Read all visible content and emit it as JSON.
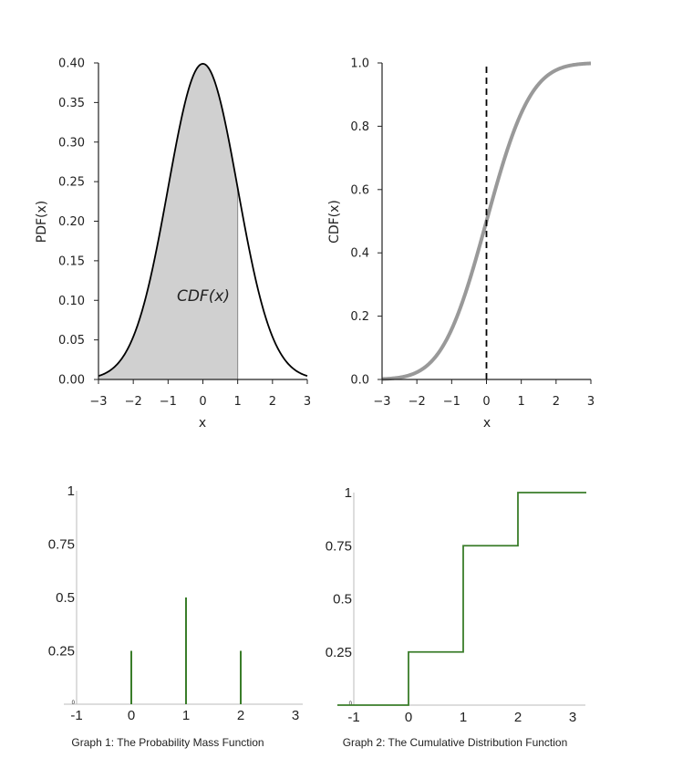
{
  "chart_data": [
    {
      "type": "area",
      "title": "",
      "xlabel": "x",
      "ylabel": "PDF(x)",
      "xlim": [
        -3,
        3
      ],
      "ylim": [
        0,
        0.4
      ],
      "x_ticks": [
        "−3",
        "−2",
        "−1",
        "0",
        "1",
        "2",
        "3"
      ],
      "y_ticks": [
        "0.00",
        "0.05",
        "0.10",
        "0.15",
        "0.20",
        "0.25",
        "0.30",
        "0.35",
        "0.40"
      ],
      "curve": "standard normal density, mean 0, sd 1",
      "shaded_region": {
        "from": -3,
        "to": 1
      },
      "annotation": "CDF(x)",
      "colors": {
        "curve": "#000000",
        "fill": "#d0d0d0"
      }
    },
    {
      "type": "line",
      "title": "",
      "xlabel": "x",
      "ylabel": "CDF(x)",
      "xlim": [
        -3,
        3
      ],
      "ylim": [
        0,
        1
      ],
      "x_ticks": [
        "−3",
        "−2",
        "−1",
        "0",
        "1",
        "2",
        "3"
      ],
      "y_ticks": [
        "0.0",
        "0.2",
        "0.4",
        "0.6",
        "0.8",
        "1.0"
      ],
      "curve": "standard normal cumulative distribution",
      "marker_line": {
        "x": 0,
        "style": "dashed"
      },
      "colors": {
        "curve": "#999999",
        "marker": "#000000"
      }
    },
    {
      "type": "bar",
      "caption": "Graph 1: The Probability Mass Function",
      "xlim": [
        -1,
        3
      ],
      "ylim": [
        0,
        1
      ],
      "x_ticks": [
        "-1",
        "0",
        "1",
        "2",
        "3"
      ],
      "y_ticks": [
        "0.25",
        "0.5",
        "0.75",
        "1"
      ],
      "y_origin_label": "0",
      "points": [
        {
          "x": 0,
          "p": 0.25
        },
        {
          "x": 1,
          "p": 0.5
        },
        {
          "x": 2,
          "p": 0.25
        }
      ],
      "colors": {
        "stem": "#3a7d2a"
      }
    },
    {
      "type": "line",
      "caption": "Graph 2: The Cumulative Distribution Function",
      "xlim": [
        -1,
        3
      ],
      "ylim": [
        0,
        1
      ],
      "x_ticks": [
        "-1",
        "0",
        "1",
        "2",
        "3"
      ],
      "y_ticks": [
        "0.25",
        "0.5",
        "0.75",
        "1"
      ],
      "y_origin_label": "0",
      "steps": [
        {
          "from": -1.3,
          "to": 0,
          "value": 0
        },
        {
          "from": 0,
          "to": 1,
          "value": 0.25
        },
        {
          "from": 1,
          "to": 2,
          "value": 0.75
        },
        {
          "from": 2,
          "to": 3.25,
          "value": 1
        }
      ],
      "colors": {
        "step": "#3a7d2a"
      }
    }
  ]
}
